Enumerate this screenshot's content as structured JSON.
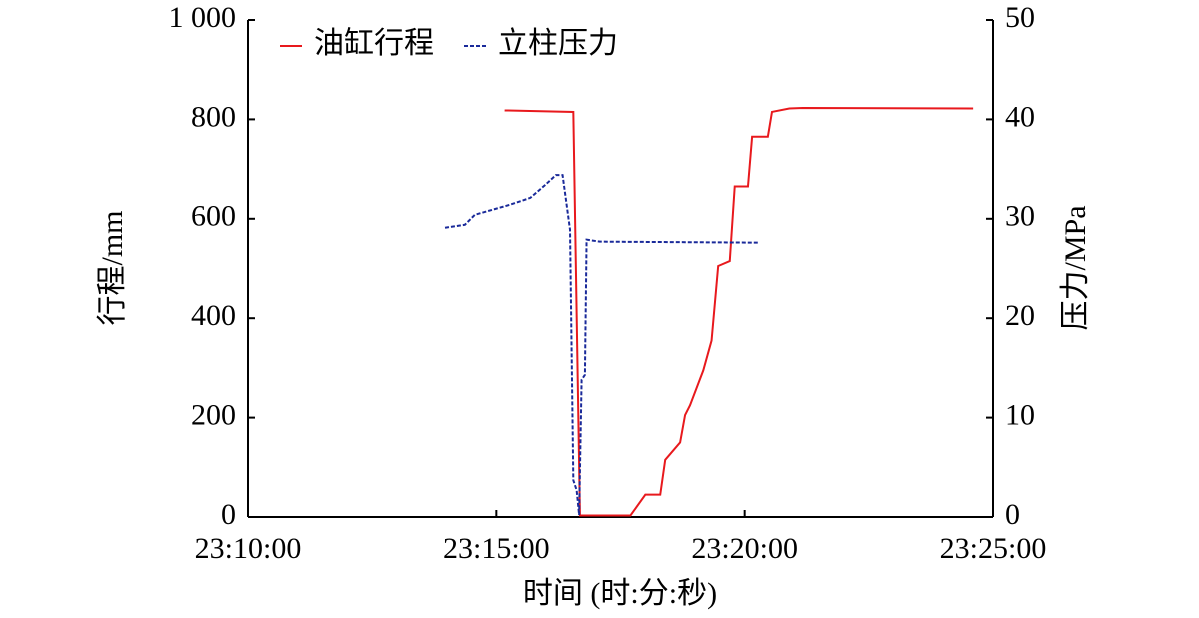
{
  "chart_data": {
    "type": "line",
    "xlabel": "时间 (时:分:秒)",
    "ylabel": "行程/mm",
    "y2label": "压力/MPa",
    "xlim": [
      "23:10:00",
      "23:25:00"
    ],
    "xticks": [
      "23:10:00",
      "23:15:00",
      "23:20:00",
      "23:25:00"
    ],
    "ylim": [
      0,
      1000
    ],
    "yticks": [
      0,
      200,
      400,
      600,
      800,
      {
        "value": 1000,
        "label": "1 000"
      }
    ],
    "y2lim": [
      0,
      50
    ],
    "y2ticks": [
      0,
      10,
      20,
      30,
      40,
      50
    ],
    "legend": "upper left",
    "series": [
      {
        "name": "油缸行程",
        "color": "#e8191d",
        "dash": false,
        "x": [
          "23:15:10",
          "23:16:33",
          "23:16:41",
          "23:17:42",
          "23:18:00",
          "23:18:18",
          "23:18:24",
          "23:18:42",
          "23:18:48",
          "23:18:54",
          "23:19:10",
          "23:19:20",
          "23:19:28",
          "23:19:42",
          "23:19:48",
          "23:20:04",
          "23:20:09",
          "23:20:28",
          "23:20:33",
          "23:20:54",
          "23:21:10",
          "23:24:36"
        ],
        "values": [
          818,
          815,
          3,
          3,
          45,
          45,
          115,
          150,
          205,
          225,
          295,
          355,
          505,
          515,
          665,
          665,
          765,
          765,
          815,
          822,
          823,
          822
        ]
      },
      {
        "name": "立柱压力",
        "color": "#1a2a9a",
        "dash": true,
        "axis": "y2",
        "x": [
          "23:13:58",
          "23:14:22",
          "23:14:34",
          "23:15:16",
          "23:15:41",
          "23:15:59",
          "23:16:12",
          "23:16:20",
          "23:16:29",
          "23:16:33",
          "23:16:37",
          "23:16:40",
          "23:16:43",
          "23:16:47",
          "23:16:49",
          "23:17:05",
          "23:20:18"
        ],
        "values": [
          29.1,
          29.4,
          30.4,
          31.4,
          32.1,
          33.4,
          34.4,
          34.4,
          28.9,
          3.7,
          2.7,
          0.2,
          13.8,
          14.3,
          27.9,
          27.7,
          27.6
        ]
      }
    ]
  }
}
